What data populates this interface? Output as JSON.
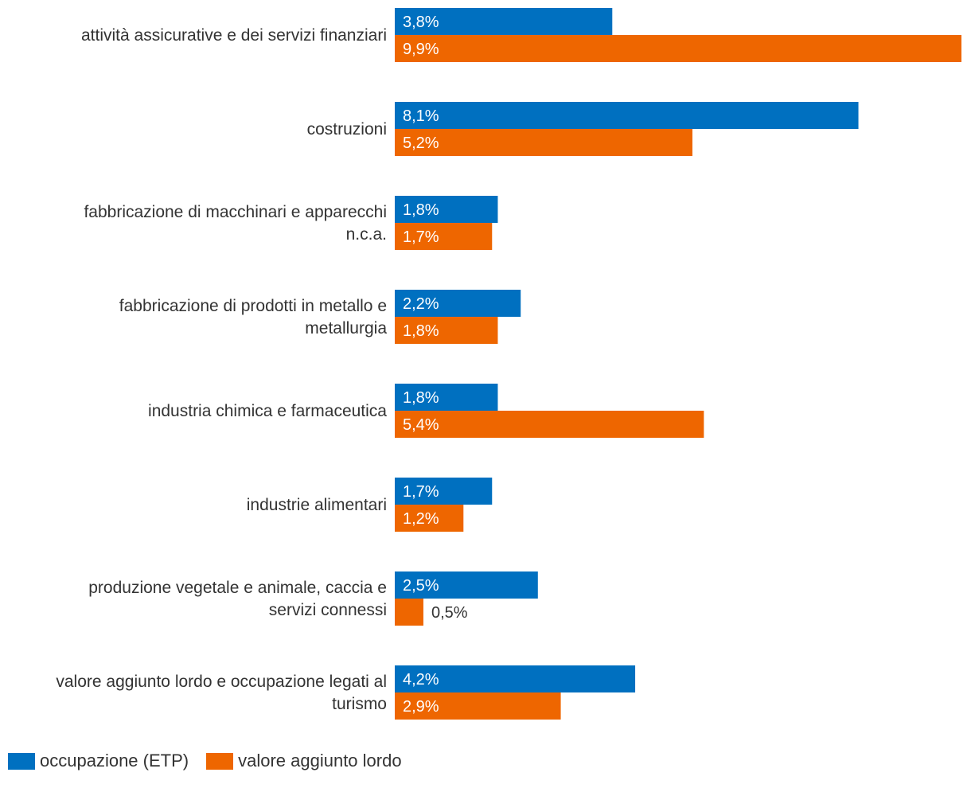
{
  "chart_data": {
    "type": "bar",
    "orientation": "horizontal",
    "title": "",
    "xlabel": "",
    "ylabel": "",
    "xlim": [
      0,
      9.9
    ],
    "grid": false,
    "legend_position": "bottom-left",
    "categories": [
      "attività assicurative e dei servizi finanziari",
      "costruzioni",
      "fabbricazione di macchinari e apparecchi n.c.a.",
      "fabbricazione di prodotti in metallo e metallurgia",
      "industria chimica e farmaceutica",
      "industrie alimentari",
      "produzione vegetale e animale, caccia e servizi connessi",
      "valore aggiunto lordo e occupazione legati al turismo"
    ],
    "category_lines": [
      [
        "attività assicurative e dei servizi finanziari"
      ],
      [
        "costruzioni"
      ],
      [
        "fabbricazione di macchinari e apparecchi",
        "n.c.a."
      ],
      [
        "fabbricazione di prodotti in metallo e",
        "metallurgia"
      ],
      [
        "industria chimica e farmaceutica"
      ],
      [
        "industrie alimentari"
      ],
      [
        "produzione vegetale e animale, caccia e",
        "servizi connessi"
      ],
      [
        "valore aggiunto lordo e occupazione legati al",
        "turismo"
      ]
    ],
    "series": [
      {
        "name": "occupazione (ETP)",
        "color": "#0070C0",
        "values": [
          3.8,
          8.1,
          1.8,
          2.2,
          1.8,
          1.7,
          2.5,
          4.2
        ],
        "labels": [
          "3,8%",
          "8,1%",
          "1,8%",
          "2,2%",
          "1,8%",
          "1,7%",
          "2,5%",
          "4,2%"
        ]
      },
      {
        "name": "valore aggiunto lordo",
        "color": "#EE6600",
        "values": [
          9.9,
          5.2,
          1.7,
          1.8,
          5.4,
          1.2,
          0.5,
          2.9
        ],
        "labels": [
          "9,9%",
          "5,2%",
          "1,7%",
          "1,8%",
          "5,4%",
          "1,2%",
          "0,5%",
          "2,9%"
        ]
      }
    ]
  }
}
